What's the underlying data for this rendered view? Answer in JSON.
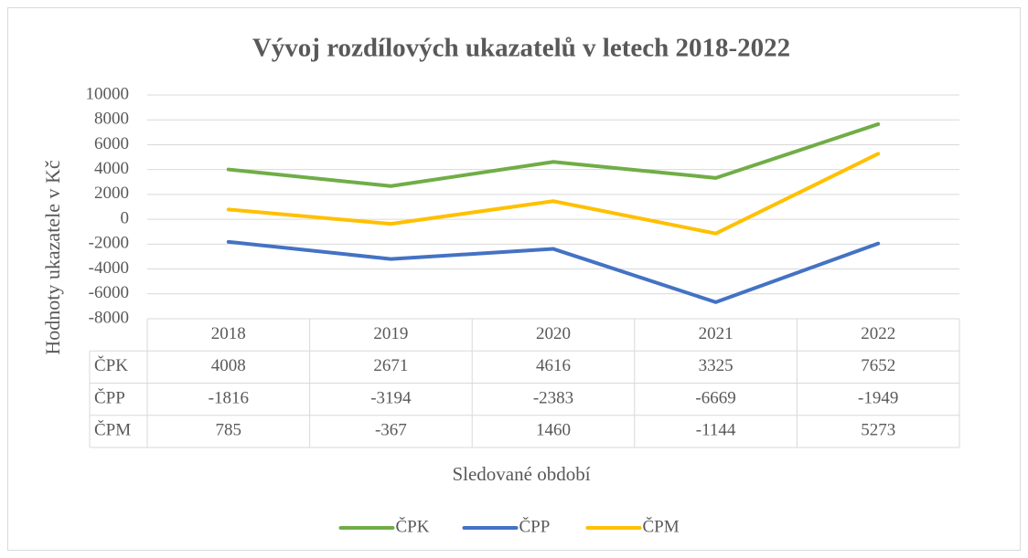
{
  "chart_data": {
    "type": "line",
    "title": "Vývoj rozdílových ukazatelů v letech 2018-2022",
    "x_label": "Sledované období",
    "y_label": "Hodnoty ukazatele v Kč",
    "categories": [
      "2018",
      "2019",
      "2020",
      "2021",
      "2022"
    ],
    "series": [
      {
        "name": "ČPK",
        "color": "#70ad47",
        "values": [
          4008,
          2671,
          4616,
          3325,
          7652
        ]
      },
      {
        "name": "ČPP",
        "color": "#4472c4",
        "values": [
          -1816,
          -3194,
          -2383,
          -6669,
          -1949
        ]
      },
      {
        "name": "ČPM",
        "color": "#ffc000",
        "values": [
          785,
          -367,
          1460,
          -1144,
          5273
        ]
      }
    ],
    "ylim": [
      -8000,
      10000
    ],
    "yticks": [
      -8000,
      -6000,
      -4000,
      -2000,
      0,
      2000,
      4000,
      6000,
      8000,
      10000
    ],
    "grid": true,
    "legend": "bottom"
  }
}
